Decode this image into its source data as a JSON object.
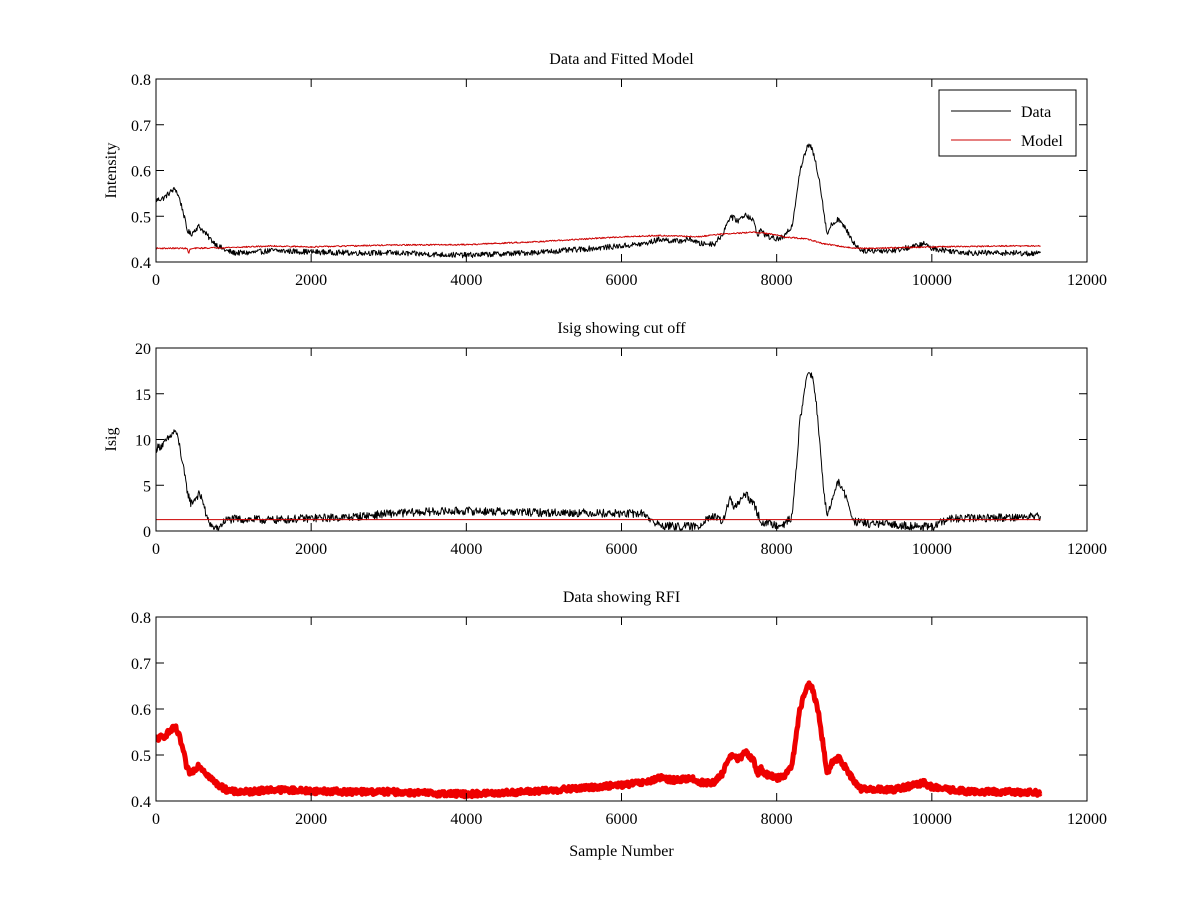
{
  "figure": {
    "background": "#ffffff",
    "axis_color": "#000000"
  },
  "chart_data": [
    {
      "type": "line",
      "title": "Data and Fitted Model",
      "xlabel": "",
      "ylabel": "Intensity",
      "xlim": [
        0,
        12000
      ],
      "ylim": [
        0.4,
        0.8
      ],
      "xticks": [
        0,
        2000,
        4000,
        6000,
        8000,
        10000,
        12000
      ],
      "xtick_labels": [
        "0",
        "2000",
        "4000",
        "6000",
        "8000",
        "10000",
        "12000"
      ],
      "yticks": [
        0.4,
        0.5,
        0.6,
        0.7,
        0.8
      ],
      "ytick_labels": [
        "0.4",
        "0.5",
        "0.6",
        "0.7",
        "0.8"
      ],
      "grid": false,
      "legend": {
        "position": "top-right",
        "entries": [
          {
            "label": "Data",
            "color": "#000000"
          },
          {
            "label": "Model",
            "color": "#cc0000"
          }
        ]
      },
      "series": [
        {
          "name": "Data",
          "color": "#000000",
          "style": "noisy",
          "noise": 0.006,
          "x": [
            0,
            100,
            200,
            250,
            300,
            350,
            400,
            450,
            500,
            550,
            600,
            700,
            800,
            900,
            1000,
            1200,
            1500,
            2000,
            2500,
            3000,
            3500,
            4000,
            4500,
            5000,
            5500,
            6000,
            6300,
            6500,
            6700,
            6900,
            7000,
            7200,
            7300,
            7400,
            7500,
            7600,
            7700,
            7750,
            7800,
            7850,
            7900,
            8000,
            8100,
            8200,
            8300,
            8400,
            8450,
            8500,
            8550,
            8600,
            8650,
            8700,
            8800,
            8850,
            8900,
            9000,
            9100,
            9200,
            9500,
            9800,
            9900,
            10000,
            10200,
            10500,
            11000,
            11400
          ],
          "values": [
            0.535,
            0.54,
            0.555,
            0.56,
            0.54,
            0.51,
            0.47,
            0.46,
            0.47,
            0.478,
            0.47,
            0.45,
            0.435,
            0.425,
            0.42,
            0.42,
            0.425,
            0.422,
            0.42,
            0.42,
            0.417,
            0.415,
            0.418,
            0.422,
            0.428,
            0.435,
            0.44,
            0.45,
            0.445,
            0.45,
            0.44,
            0.44,
            0.46,
            0.5,
            0.49,
            0.505,
            0.49,
            0.46,
            0.47,
            0.46,
            0.455,
            0.45,
            0.455,
            0.48,
            0.6,
            0.655,
            0.65,
            0.62,
            0.58,
            0.52,
            0.46,
            0.48,
            0.495,
            0.48,
            0.47,
            0.44,
            0.425,
            0.425,
            0.425,
            0.435,
            0.44,
            0.43,
            0.425,
            0.42,
            0.42,
            0.418
          ]
        },
        {
          "name": "Model",
          "color": "#cc0000",
          "style": "smooth",
          "noise": 0.0015,
          "x": [
            0,
            400,
            420,
            440,
            500,
            1000,
            1500,
            2000,
            3000,
            4000,
            5000,
            6000,
            6500,
            7000,
            7200,
            7700,
            7900,
            8100,
            8400,
            8600,
            8800,
            9000,
            9200,
            10000,
            11000,
            11400
          ],
          "values": [
            0.43,
            0.43,
            0.418,
            0.428,
            0.43,
            0.432,
            0.435,
            0.433,
            0.437,
            0.438,
            0.445,
            0.455,
            0.458,
            0.455,
            0.46,
            0.465,
            0.462,
            0.455,
            0.45,
            0.44,
            0.435,
            0.43,
            0.43,
            0.433,
            0.435,
            0.435
          ]
        }
      ]
    },
    {
      "type": "line",
      "title": "Isig showing cut off",
      "xlabel": "",
      "ylabel": "Isig",
      "xlim": [
        0,
        12000
      ],
      "ylim": [
        0,
        20
      ],
      "xticks": [
        0,
        2000,
        4000,
        6000,
        8000,
        10000,
        12000
      ],
      "xtick_labels": [
        "0",
        "2000",
        "4000",
        "6000",
        "8000",
        "10000",
        "12000"
      ],
      "yticks": [
        0,
        5,
        10,
        15,
        20
      ],
      "ytick_labels": [
        "0",
        "5",
        "10",
        "15",
        "20"
      ],
      "grid": false,
      "series": [
        {
          "name": "Isig",
          "color": "#000000",
          "style": "noisy",
          "noise": 0.45,
          "x": [
            0,
            100,
            200,
            250,
            300,
            350,
            400,
            450,
            500,
            550,
            600,
            650,
            700,
            750,
            800,
            900,
            1000,
            1500,
            2000,
            2500,
            3000,
            3500,
            4000,
            4500,
            5000,
            5500,
            6000,
            6300,
            6400,
            6500,
            6700,
            7000,
            7100,
            7200,
            7300,
            7400,
            7450,
            7500,
            7600,
            7700,
            7800,
            7900,
            8000,
            8100,
            8200,
            8300,
            8400,
            8450,
            8500,
            8550,
            8600,
            8650,
            8700,
            8800,
            8850,
            8900,
            9000,
            9200,
            9500,
            10000,
            10200,
            10500,
            11000,
            11400
          ],
          "values": [
            9,
            9.5,
            10.5,
            11,
            9.5,
            7,
            4.5,
            3,
            3.5,
            4,
            3.5,
            1.5,
            0.8,
            0.2,
            0.3,
            1.2,
            1.3,
            1.2,
            1.4,
            1.5,
            1.9,
            2.1,
            2.2,
            2.1,
            2.0,
            2.0,
            1.9,
            1.9,
            1.0,
            0.6,
            0.5,
            0.5,
            1.5,
            1.5,
            1.0,
            3.5,
            2.5,
            3.0,
            4.0,
            3.0,
            1.0,
            0.8,
            0.7,
            0.8,
            1.5,
            12,
            17.5,
            17,
            15,
            10,
            5,
            1.5,
            3.0,
            5.5,
            4.5,
            3.5,
            1.0,
            0.8,
            0.7,
            0.4,
            1.3,
            1.4,
            1.5,
            1.6
          ]
        },
        {
          "name": "Cut off",
          "color": "#cc0000",
          "style": "flat",
          "noise": 0,
          "x": [
            0,
            11400
          ],
          "values": [
            1.25,
            1.25
          ]
        }
      ]
    },
    {
      "type": "line",
      "title": "Data showing RFI",
      "xlabel": "Sample Number",
      "ylabel": "",
      "xlim": [
        0,
        12000
      ],
      "ylim": [
        0.4,
        0.8
      ],
      "xticks": [
        0,
        2000,
        4000,
        6000,
        8000,
        10000,
        12000
      ],
      "xtick_labels": [
        "0",
        "2000",
        "4000",
        "6000",
        "8000",
        "10000",
        "12000"
      ],
      "yticks": [
        0.4,
        0.5,
        0.6,
        0.7,
        0.8
      ],
      "ytick_labels": [
        "0.4",
        "0.5",
        "0.6",
        "0.7",
        "0.8"
      ],
      "grid": false,
      "series": [
        {
          "name": "Data",
          "color": "#ee0000",
          "style": "noisy-thick",
          "noise": 0.006,
          "x": [
            0,
            100,
            200,
            250,
            300,
            350,
            400,
            450,
            500,
            550,
            600,
            700,
            800,
            900,
            1000,
            1200,
            1500,
            2000,
            2500,
            3000,
            3500,
            4000,
            4500,
            5000,
            5500,
            6000,
            6300,
            6500,
            6700,
            6900,
            7000,
            7200,
            7300,
            7400,
            7500,
            7600,
            7700,
            7750,
            7800,
            7850,
            7900,
            8000,
            8100,
            8200,
            8300,
            8400,
            8450,
            8500,
            8550,
            8600,
            8650,
            8700,
            8800,
            8850,
            8900,
            9000,
            9100,
            9200,
            9500,
            9800,
            9900,
            10000,
            10200,
            10500,
            11000,
            11400
          ],
          "values": [
            0.535,
            0.54,
            0.555,
            0.56,
            0.54,
            0.51,
            0.47,
            0.46,
            0.47,
            0.478,
            0.47,
            0.45,
            0.435,
            0.425,
            0.42,
            0.42,
            0.425,
            0.422,
            0.42,
            0.42,
            0.417,
            0.415,
            0.418,
            0.422,
            0.428,
            0.435,
            0.44,
            0.45,
            0.445,
            0.45,
            0.44,
            0.44,
            0.46,
            0.5,
            0.49,
            0.505,
            0.49,
            0.46,
            0.47,
            0.46,
            0.455,
            0.45,
            0.455,
            0.48,
            0.6,
            0.655,
            0.65,
            0.62,
            0.58,
            0.52,
            0.46,
            0.48,
            0.495,
            0.48,
            0.47,
            0.44,
            0.425,
            0.425,
            0.425,
            0.435,
            0.44,
            0.43,
            0.425,
            0.42,
            0.42,
            0.418
          ]
        }
      ]
    }
  ]
}
